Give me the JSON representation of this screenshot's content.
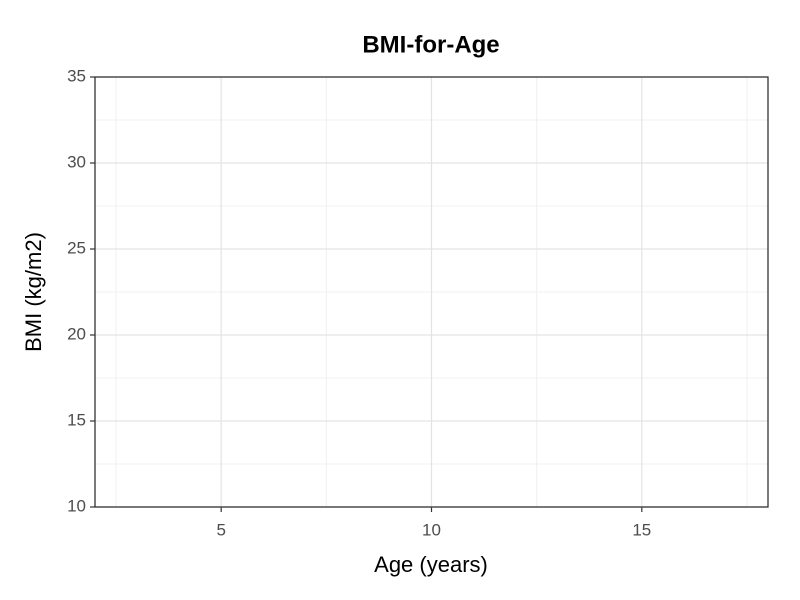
{
  "chart_data": {
    "type": "line",
    "title": "BMI-for-Age",
    "x_label": "Age (years)",
    "y_label": "BMI (kg/m2)",
    "series": [],
    "xlim": [
      2,
      18
    ],
    "xticks": [
      5,
      10,
      15
    ],
    "ylim": [
      10,
      35
    ],
    "yticks": [
      10,
      15,
      20,
      25,
      30,
      35
    ],
    "grid": true,
    "minor_grid": true
  }
}
